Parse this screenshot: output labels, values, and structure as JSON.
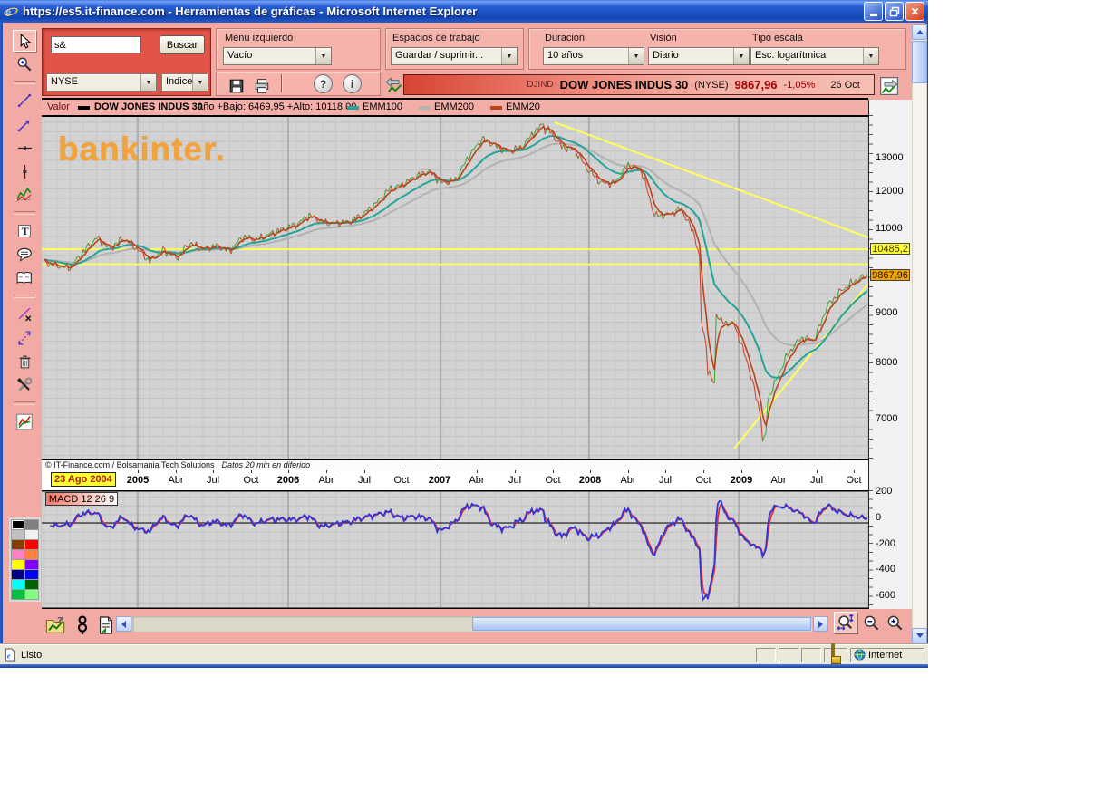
{
  "window": {
    "title": "https://es5.it-finance.com - Herramientas de gráficas - Microsoft Internet Explorer",
    "status": {
      "left": "Listo",
      "zone": "Internet"
    }
  },
  "toolbar": {
    "search": {
      "value": "s&",
      "button": "Buscar"
    },
    "exchange": "NYSE",
    "instrument": "Indice",
    "panels": [
      {
        "label": "Menú izquierdo",
        "value": "Vacío"
      },
      {
        "label": "Espacios de trabajo",
        "value": "Guardar / suprimir..."
      },
      {
        "label": "Duración",
        "value": "10 años"
      },
      {
        "label": "Visión",
        "value": "Diario"
      },
      {
        "label": "Tipo escala",
        "value": "Esc. logarítmica"
      }
    ]
  },
  "ticker": {
    "code": "DJIND",
    "name": "DOW JONES INDUS 30",
    "exchange": "(NYSE)",
    "last": "9867,96",
    "change": "-1,05%",
    "date": "26 Oct"
  },
  "legend": {
    "value_label": "Valor",
    "series": "DOW JONES INDUS 30",
    "range": "año +Bajo: 6469,95 +Alto: 10118,00",
    "emm100": "EMM100",
    "emm200": "EMM200",
    "emm20": "EMM20"
  },
  "watermark": "bankinter.",
  "footnote": {
    "copyright": "© IT-Finance.com / Bolsamania Tech Solutions",
    "delay": "Datos 20 min en diferido"
  },
  "palette": [
    "#000000",
    "#808080",
    "#c0c0c0",
    "#f0f0f0",
    "#804000",
    "#ff0000",
    "#ff80c0",
    "#ff8040",
    "#ffff00",
    "#8000ff",
    "#000080",
    "#0000ff",
    "#00ffff",
    "#006400",
    "#00c040",
    "#80ff80"
  ],
  "chart_data": {
    "type": "line",
    "title": "DOW JONES INDUS 30",
    "symbol": "DJIND",
    "exchange": "NYSE",
    "scale": "logarithmic",
    "period": "10 años",
    "view": "Diario",
    "last": 9867.96,
    "change_pct": -1.05,
    "date": "26 Oct",
    "year_low": 6469.95,
    "year_high": 10118.0,
    "x_axis": {
      "start_label": "23 Ago 2004",
      "start": "2004-08-23",
      "end": "2009-10-26",
      "interval": "monthly",
      "ticks": [
        "2005",
        "Abr",
        "Jul",
        "Oct",
        "2006",
        "Abr",
        "Jul",
        "Oct",
        "2007",
        "Abr",
        "Jul",
        "Oct",
        "2008",
        "Abr",
        "Jul",
        "Oct",
        "2009",
        "Abr",
        "Jul",
        "Oct"
      ]
    },
    "y_axis": {
      "ticks": [
        13000,
        12000,
        11000,
        9000,
        8000,
        7000
      ],
      "marker_upper": "10485,2",
      "marker_last": "9867,96",
      "range": [
        6365,
        14420
      ]
    },
    "close_monthly": [
      10174,
      10080,
      10027,
      10428,
      10783,
      10490,
      10766,
      10504,
      10193,
      10467,
      10275,
      10641,
      10482,
      10569,
      10440,
      10806,
      10718,
      10865,
      10993,
      11109,
      11367,
      11168,
      11150,
      11186,
      11381,
      11679,
      12080,
      12222,
      12463,
      12622,
      12269,
      12354,
      13063,
      13628,
      13409,
      13212,
      13358,
      13896,
      13930,
      13372,
      13265,
      12650,
      12266,
      12263,
      12820,
      12638,
      11350,
      11378,
      11544,
      10851,
      9325,
      8829,
      8776,
      8001,
      7063,
      7609,
      8168,
      8500,
      8447,
      9172,
      9496,
      9712,
      9867
    ],
    "series": [
      {
        "name": "DOW JONES INDUS 30",
        "style": "price",
        "colors": [
          "#3fae3f",
          "#cf4838"
        ]
      },
      {
        "name": "EMM20",
        "color": "#b8441c"
      },
      {
        "name": "EMM100",
        "color": "#27a49a"
      },
      {
        "name": "EMM200",
        "color": "#b2b2b2"
      }
    ],
    "annotations": {
      "color": "#ffff5a",
      "h_lines": [
        10485.2,
        10118.0
      ],
      "trendlines": [
        {
          "from": [
            566,
            8
          ],
          "to": [
            912,
            135
          ]
        },
        {
          "from": [
            764,
            368
          ],
          "to": [
            912,
            186
          ]
        }
      ]
    },
    "macd": {
      "label": "MACD 12 26 9",
      "params": [
        12,
        26,
        9
      ],
      "y_ticks": [
        200,
        0,
        -200,
        -400,
        -600
      ],
      "series": [
        {
          "name": "MACD",
          "color": "#3535d6"
        },
        {
          "name": "Signal",
          "color": "#e03030"
        }
      ]
    }
  }
}
